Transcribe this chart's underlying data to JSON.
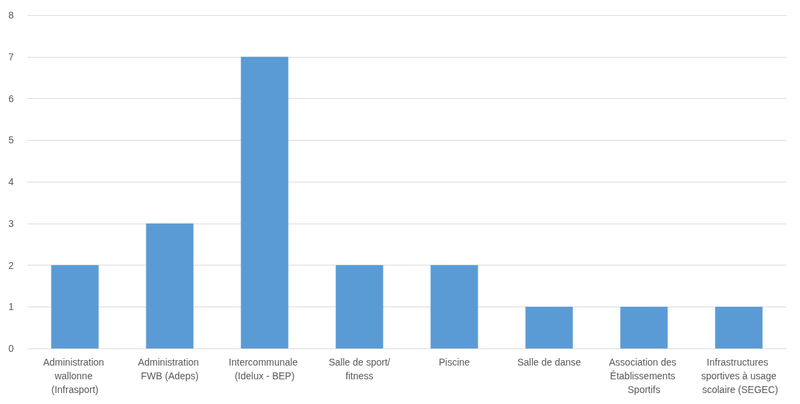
{
  "chart_data": {
    "type": "bar",
    "categories": [
      "Administration wallonne (Infrasport)",
      "Administration FWB (Adeps)",
      "Intercommunale (Idelux - BEP)",
      "Salle de sport/fitness",
      "Piscine",
      "Salle de danse",
      "Association des Établissements Sportifs",
      "Infrastructures sportives à usage scolaire (SEGEC)"
    ],
    "values": [
      2,
      3,
      7,
      2,
      2,
      1,
      1,
      1
    ],
    "color": "#5b9bd5",
    "ylim": [
      0,
      8
    ],
    "yticks": [
      0,
      1,
      2,
      3,
      4,
      5,
      6,
      7,
      8
    ],
    "grid": "y"
  }
}
